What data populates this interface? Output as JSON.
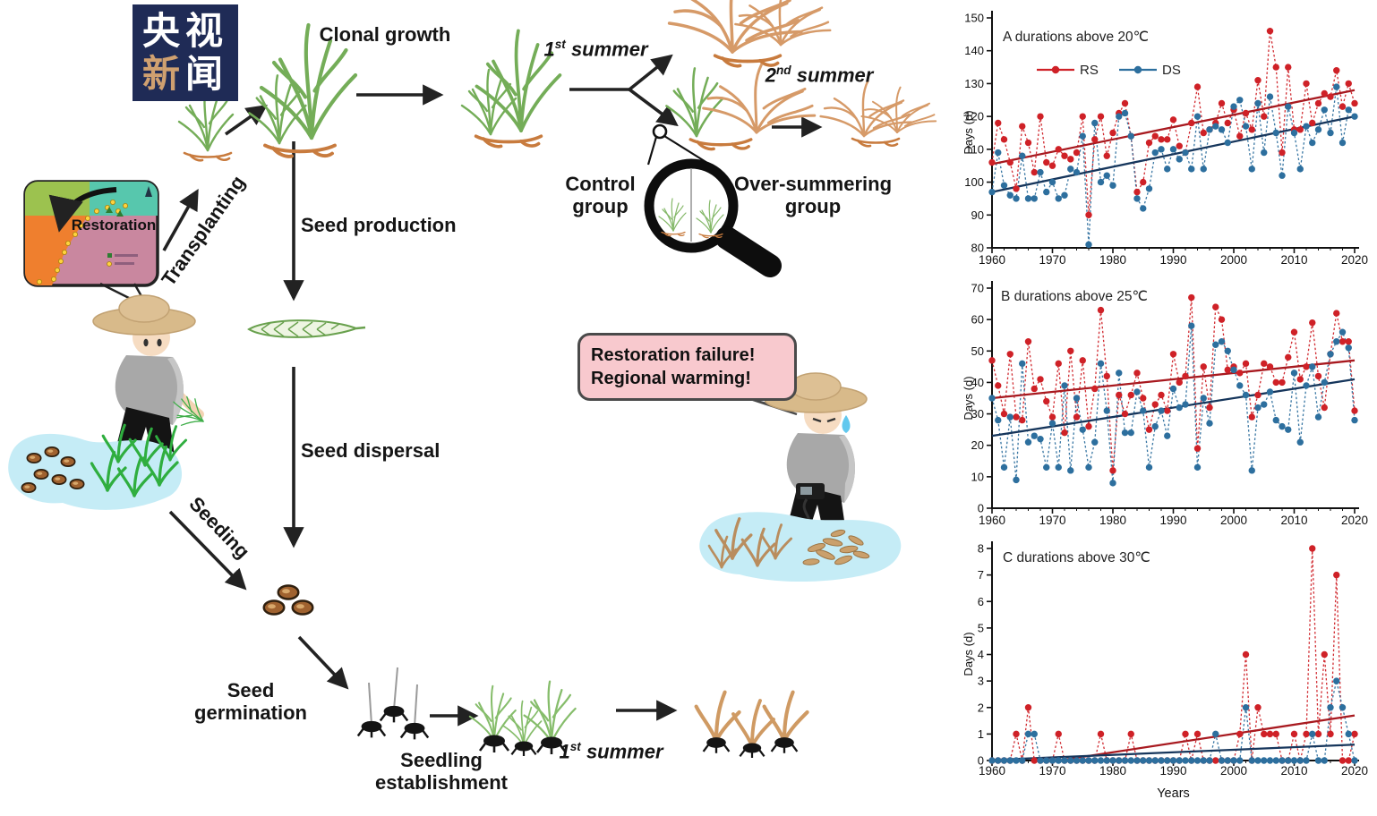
{
  "logo": {
    "row1": "央视",
    "row2_char1": "新",
    "row2_char2": "闻"
  },
  "diagram": {
    "labels": {
      "clonal_growth": "Clonal growth",
      "first_summer": {
        "num": "1",
        "sup": "st",
        "word": " summer"
      },
      "second_summer": {
        "num": "2",
        "sup": "nd",
        "word": " summer"
      },
      "control_group": {
        "line1": "Control",
        "line2": "group"
      },
      "oversummering_group": {
        "line1": "Over-summering",
        "line2": "group"
      },
      "transplanting": "Transplanting",
      "seed_production": "Seed production",
      "seed_dispersal": "Seed dispersal",
      "seeding": "Seeding",
      "seed_germination": {
        "line1": "Seed",
        "line2": "germination"
      },
      "seedling_establishment": {
        "line1": "Seedling",
        "line2": "establishment"
      },
      "first_summer_bottom": {
        "num": "1",
        "sup": "st",
        "word": " summer"
      },
      "map_label": "Restoration",
      "bubble": {
        "line1": "Restoration failure!",
        "line2": "Regional warming!"
      }
    },
    "colors": {
      "live_grass": "#74ad58",
      "bright_grass": "#3fae49",
      "dead_grass": "#d69a68",
      "root": "#c87b3e",
      "water": "#c5ecf6",
      "bubble_pink": "#f8c9ce",
      "logo_navy": "#1f2b56",
      "logo_gold": "#cfa070",
      "map_green": "#9cc24f",
      "map_teal": "#57c7ad",
      "map_orange": "#ef7f2e",
      "map_pink": "#c9879f"
    }
  },
  "chart_data": [
    {
      "type": "line",
      "title": "A  durations above 20℃",
      "ylabel": "Days (d)",
      "xlabel": "",
      "x_range": [
        1960,
        2020
      ],
      "x_step": 1,
      "x_minor_step": 2,
      "ylim": [
        80,
        150
      ],
      "yticks": [
        80,
        90,
        100,
        110,
        120,
        130,
        140,
        150
      ],
      "xticks": [
        1960,
        1970,
        1980,
        1990,
        2000,
        2010,
        2020
      ],
      "legend": true,
      "grid": false,
      "series": [
        {
          "name": "RS",
          "color": "#cf2127",
          "values": [
            106,
            118,
            113,
            106,
            98,
            117,
            112,
            103,
            120,
            106,
            105,
            110,
            108,
            107,
            109,
            120,
            90,
            113,
            120,
            108,
            115,
            121,
            124,
            114,
            97,
            100,
            112,
            114,
            113,
            113,
            119,
            111,
            109,
            118,
            129,
            115,
            116,
            118,
            124,
            118,
            122,
            114,
            121,
            116,
            131,
            120,
            146,
            135,
            109,
            135,
            116,
            116,
            130,
            118,
            124,
            127,
            126,
            134,
            123,
            130,
            124
          ]
        },
        {
          "name": "DS",
          "color": "#2d6f9e",
          "values": [
            97,
            109,
            99,
            96,
            95,
            108,
            95,
            95,
            103,
            97,
            100,
            95,
            96,
            104,
            103,
            114,
            81,
            118,
            100,
            102,
            99,
            120,
            121,
            114,
            95,
            92,
            98,
            109,
            110,
            104,
            110,
            107,
            109,
            104,
            120,
            104,
            116,
            117,
            116,
            112,
            123,
            125,
            117,
            104,
            124,
            109,
            126,
            115,
            102,
            123,
            115,
            104,
            117,
            112,
            116,
            122,
            115,
            129,
            112,
            122,
            120
          ]
        }
      ],
      "trends": [
        {
          "series": "RS",
          "color": "#a8191f",
          "x": [
            1960,
            2020
          ],
          "y": [
            105.5,
            128
          ]
        },
        {
          "series": "DS",
          "color": "#16365c",
          "x": [
            1960,
            2020
          ],
          "y": [
            97,
            120
          ]
        }
      ]
    },
    {
      "type": "line",
      "title": "B  durations above 25℃",
      "ylabel": "Days (d)",
      "xlabel": "",
      "x_range": [
        1960,
        2020
      ],
      "x_step": 1,
      "x_minor_step": 2,
      "ylim": [
        0,
        70
      ],
      "yticks": [
        0,
        10,
        20,
        30,
        40,
        50,
        60,
        70
      ],
      "xticks": [
        1960,
        1970,
        1980,
        1990,
        2000,
        2010,
        2020
      ],
      "legend": false,
      "grid": false,
      "series": [
        {
          "name": "RS",
          "color": "#cf2127",
          "values": [
            47,
            39,
            30,
            49,
            29,
            28,
            53,
            38,
            41,
            34,
            29,
            46,
            24,
            50,
            29,
            47,
            26,
            38,
            63,
            42,
            12,
            36,
            30,
            36,
            43,
            35,
            25,
            33,
            36,
            31,
            49,
            40,
            42,
            67,
            19,
            45,
            32,
            64,
            60,
            44,
            45,
            43,
            46,
            29,
            36,
            46,
            45,
            40,
            40,
            48,
            56,
            41,
            45,
            59,
            42,
            32,
            49,
            62,
            53,
            53,
            31
          ]
        },
        {
          "name": "DS",
          "color": "#2d6f9e",
          "values": [
            35,
            28,
            13,
            29,
            9,
            46,
            21,
            23,
            22,
            13,
            27,
            13,
            39,
            12,
            35,
            25,
            13,
            21,
            46,
            31,
            8,
            43,
            24,
            24,
            37,
            31,
            13,
            26,
            31,
            23,
            38,
            32,
            33,
            58,
            13,
            35,
            27,
            52,
            53,
            50,
            44,
            39,
            36,
            12,
            32,
            33,
            37,
            28,
            26,
            25,
            43,
            21,
            39,
            45,
            29,
            40,
            49,
            53,
            56,
            51,
            28
          ]
        }
      ],
      "trends": [
        {
          "series": "RS",
          "color": "#a8191f",
          "x": [
            1960,
            2020
          ],
          "y": [
            35,
            47
          ]
        },
        {
          "series": "DS",
          "color": "#16365c",
          "x": [
            1960,
            2020
          ],
          "y": [
            23,
            41
          ]
        }
      ]
    },
    {
      "type": "line",
      "title": "C  durations above 30℃",
      "ylabel": "Days (d)",
      "xlabel": "Years",
      "x_range": [
        1960,
        2020
      ],
      "x_step": 1,
      "x_minor_step": 2,
      "ylim": [
        0,
        8
      ],
      "yticks": [
        0,
        1,
        2,
        3,
        4,
        5,
        6,
        7,
        8
      ],
      "xticks": [
        1960,
        1970,
        1980,
        1990,
        2000,
        2010,
        2020
      ],
      "legend": false,
      "grid": false,
      "series": [
        {
          "name": "RS",
          "color": "#cf2127",
          "values": [
            0,
            0,
            0,
            0,
            1,
            0,
            2,
            0,
            0,
            0,
            0,
            1,
            0,
            0,
            0,
            0,
            0,
            0,
            1,
            0,
            0,
            0,
            0,
            1,
            0,
            0,
            0,
            0,
            0,
            0,
            0,
            0,
            1,
            0,
            1,
            0,
            0,
            0,
            0,
            0,
            0,
            1,
            4,
            0,
            2,
            1,
            1,
            1,
            0,
            0,
            1,
            0,
            1,
            8,
            1,
            4,
            1,
            7,
            0,
            0,
            1
          ]
        },
        {
          "name": "DS",
          "color": "#2d6f9e",
          "values": [
            0,
            0,
            0,
            0,
            0,
            0,
            1,
            1,
            0,
            0,
            0,
            0,
            0,
            0,
            0,
            0,
            0,
            0,
            0,
            0,
            0,
            0,
            0,
            0,
            0,
            0,
            0,
            0,
            0,
            0,
            0,
            0,
            0,
            0,
            0,
            0,
            0,
            1,
            0,
            0,
            0,
            0,
            2,
            0,
            0,
            0,
            0,
            0,
            0,
            0,
            0,
            0,
            0,
            1,
            0,
            0,
            2,
            3,
            2,
            1,
            0
          ]
        }
      ],
      "trends": [
        {
          "series": "RS",
          "color": "#a8191f",
          "x": [
            1971,
            2020
          ],
          "y": [
            0,
            1.7
          ]
        },
        {
          "series": "DS",
          "color": "#16365c",
          "x": [
            1960,
            2020
          ],
          "y": [
            0.02,
            0.6
          ]
        }
      ]
    }
  ]
}
